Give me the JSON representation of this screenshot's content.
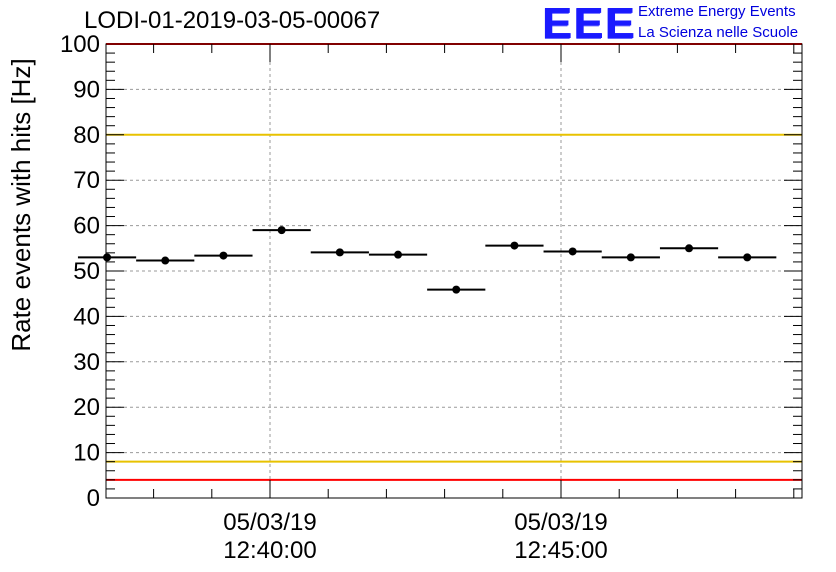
{
  "chart_data": {
    "type": "scatter",
    "title": "LODI-01-2019-03-05-00067",
    "ylabel": "Rate events with hits [Hz]",
    "xlabel": "",
    "ylim": [
      0,
      100
    ],
    "y_ticks": [
      0,
      10,
      20,
      30,
      40,
      50,
      60,
      70,
      80,
      90,
      100
    ],
    "x_ticks": [
      {
        "date": "05/03/19",
        "time": "12:40:00"
      },
      {
        "date": "05/03/19",
        "time": "12:45:00"
      }
    ],
    "grid": true,
    "points": [
      {
        "x": "12:37:12",
        "y": 53.0
      },
      {
        "x": "12:38:12",
        "y": 52.3
      },
      {
        "x": "12:39:12",
        "y": 53.4
      },
      {
        "x": "12:40:12",
        "y": 59.0
      },
      {
        "x": "12:41:12",
        "y": 54.1
      },
      {
        "x": "12:42:12",
        "y": 53.6
      },
      {
        "x": "12:43:12",
        "y": 45.9
      },
      {
        "x": "12:44:12",
        "y": 55.6
      },
      {
        "x": "12:45:12",
        "y": 54.3
      },
      {
        "x": "12:46:12",
        "y": 53.0
      },
      {
        "x": "12:47:12",
        "y": 55.0
      },
      {
        "x": "12:48:12",
        "y": 53.0
      }
    ],
    "reference_lines": [
      {
        "y": 100,
        "color": "#ff0000"
      },
      {
        "y": 80,
        "color": "#e8c200"
      },
      {
        "y": 8,
        "color": "#e8c200"
      },
      {
        "y": 4,
        "color": "#ff0000"
      }
    ],
    "marker_color": "#000000"
  },
  "logo": {
    "mark": "EEE",
    "line1": "Extreme Energy Events",
    "line2": "La Scienza nelle Scuole"
  }
}
